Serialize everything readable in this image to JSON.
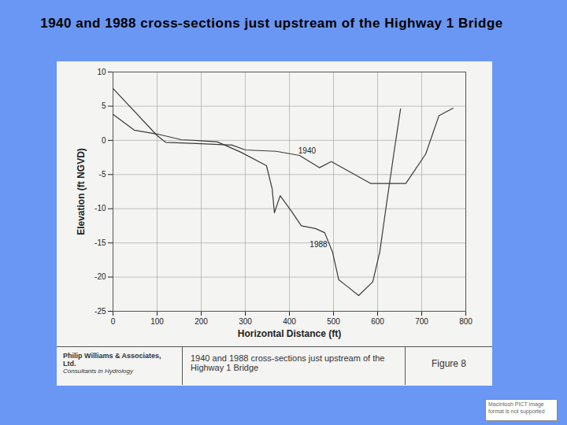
{
  "chart_data": {
    "type": "line",
    "title": "1940 and 1988 cross-sections just upstream of the Highway 1 Bridge",
    "x_label": "Horizontal Distance (ft)",
    "y_label": "Elevation (ft NGVD)",
    "xlim": [
      0,
      800
    ],
    "xticks": [
      0,
      100,
      200,
      300,
      400,
      500,
      600,
      700,
      800
    ],
    "ylim": [
      -25,
      10
    ],
    "yticks": [
      -25,
      -20,
      -15,
      -10,
      -5,
      0,
      5,
      10
    ],
    "grid": true,
    "series": [
      {
        "name": "1940",
        "color": "#3a3a3a",
        "label_x": 440,
        "label_y": -1.6,
        "x": [
          0,
          100,
          120,
          200,
          270,
          300,
          370,
          423,
          468,
          495,
          584,
          664,
          709,
          739,
          771
        ],
        "values": [
          7.6,
          0.7,
          -0.3,
          -0.5,
          -0.7,
          -1.4,
          -1.6,
          -2.2,
          -4.0,
          -3.1,
          -6.3,
          -6.3,
          -2.0,
          3.6,
          4.7
        ]
      },
      {
        "name": "1988",
        "color": "#3a3a3a",
        "label_x": 466,
        "label_y": -15.3,
        "x": [
          0,
          48,
          102,
          155,
          236,
          289,
          348,
          361,
          366,
          379,
          405,
          427,
          459,
          480,
          498,
          512,
          530,
          557,
          589,
          605,
          620,
          638,
          652
        ],
        "values": [
          3.8,
          1.5,
          0.9,
          0.1,
          -0.2,
          -1.7,
          -3.7,
          -7.1,
          -10.6,
          -8.1,
          -10.4,
          -12.5,
          -12.9,
          -13.5,
          -16.4,
          -20.4,
          -21.3,
          -22.7,
          -20.7,
          -16.3,
          -9.4,
          -1.4,
          4.6
        ]
      }
    ]
  },
  "figure_caption": {
    "company": "Philip Williams & Associates, Ltd.",
    "tagline": "Consultants in Hydrology",
    "caption": "1940 and 1988 cross-sections just upstream of the Highway 1 Bridge",
    "figure": "Figure 8"
  },
  "notice": "Macintosh PICT image format is not supported"
}
